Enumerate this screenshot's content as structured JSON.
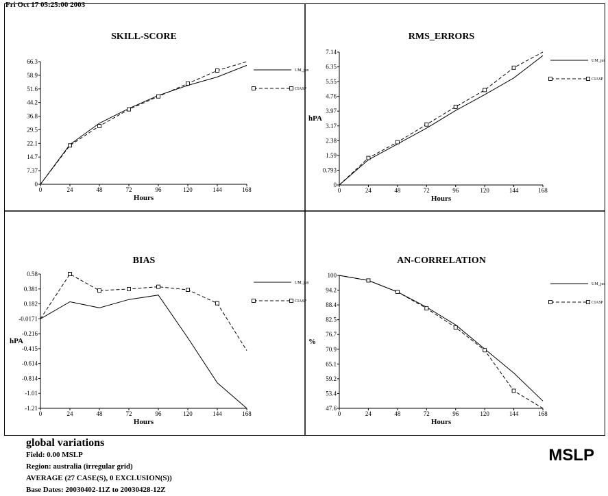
{
  "timestamp": "Fri Oct 17 05:25:00 2003",
  "colors": {
    "line": "#000000",
    "background": "#ffffff"
  },
  "chart_data": [
    {
      "type": "line",
      "title": "SKILL-SCORE",
      "xlabel": "Hours",
      "ylabel": "",
      "x": [
        0,
        24,
        48,
        72,
        96,
        120,
        144,
        168
      ],
      "x_ticks": [
        "0",
        "24",
        "48",
        "72",
        "96",
        "120",
        "144",
        "168"
      ],
      "y_ticks": [
        "0",
        "7.37",
        "14.7",
        "22.1",
        "29.5",
        "36.8",
        "44.2",
        "51.6",
        "58.9",
        "66.3"
      ],
      "ylim": [
        0,
        66.3
      ],
      "legend_position": "right",
      "series": [
        {
          "name": "UM_jun",
          "style": "solid",
          "marker": "none",
          "values": [
            0,
            21.5,
            33.0,
            41.0,
            48.0,
            53.5,
            58.0,
            64.3
          ]
        },
        {
          "name": "CIASP",
          "style": "dashed",
          "marker": "square",
          "values": [
            0,
            21.0,
            31.5,
            40.5,
            47.5,
            54.5,
            61.5,
            66.3
          ]
        }
      ]
    },
    {
      "type": "line",
      "title": "RMS_ERRORS",
      "xlabel": "Hours",
      "ylabel": "hPA",
      "x": [
        0,
        24,
        48,
        72,
        96,
        120,
        144,
        168
      ],
      "x_ticks": [
        "0",
        "24",
        "48",
        "72",
        "96",
        "120",
        "144",
        "168"
      ],
      "y_ticks": [
        "0",
        "0.793",
        "1.59",
        "2.38",
        "3.17",
        "3.97",
        "4.76",
        "5.55",
        "6.35",
        "7.14"
      ],
      "ylim": [
        0,
        7.14
      ],
      "legend_position": "right",
      "series": [
        {
          "name": "UM_jun",
          "style": "solid",
          "marker": "none",
          "values": [
            0,
            1.35,
            2.2,
            3.05,
            4.0,
            4.85,
            5.75,
            6.95
          ]
        },
        {
          "name": "CIASP",
          "style": "dashed",
          "marker": "square",
          "values": [
            0,
            1.45,
            2.3,
            3.25,
            4.2,
            5.1,
            6.3,
            7.14
          ]
        }
      ]
    },
    {
      "type": "line",
      "title": "BIAS",
      "xlabel": "Hours",
      "ylabel": "hPA",
      "x": [
        0,
        24,
        48,
        72,
        96,
        120,
        144,
        168
      ],
      "x_ticks": [
        "0",
        "24",
        "48",
        "72",
        "96",
        "120",
        "144",
        "168"
      ],
      "y_ticks": [
        "-1.21",
        "-1.01",
        "-0.814",
        "-0.614",
        "-0.415",
        "-0.216",
        "-0.0171",
        "0.182",
        "0.381",
        "0.58"
      ],
      "ylim": [
        -1.21,
        0.58
      ],
      "legend_position": "right",
      "series": [
        {
          "name": "UM_jun",
          "style": "solid",
          "marker": "none",
          "values": [
            -0.0171,
            0.21,
            0.13,
            0.24,
            0.3,
            -0.27,
            -0.87,
            -1.21
          ]
        },
        {
          "name": "CIASP",
          "style": "dashed",
          "marker": "square",
          "values": [
            -0.0171,
            0.58,
            0.36,
            0.38,
            0.41,
            0.37,
            0.19,
            -0.44
          ]
        }
      ]
    },
    {
      "type": "line",
      "title": "AN-CORRELATION",
      "xlabel": "Hours",
      "ylabel": "%",
      "x": [
        0,
        24,
        48,
        72,
        96,
        120,
        144,
        168
      ],
      "x_ticks": [
        "0",
        "24",
        "48",
        "72",
        "96",
        "120",
        "144",
        "168"
      ],
      "y_ticks": [
        "47.6",
        "53.4",
        "59.2",
        "65.1",
        "70.9",
        "76.7",
        "82.5",
        "88.4",
        "94.2",
        "100"
      ],
      "ylim": [
        47.6,
        100
      ],
      "legend_position": "right",
      "series": [
        {
          "name": "UM_jun",
          "style": "solid",
          "marker": "none",
          "values": [
            100,
            98,
            93.5,
            87.5,
            80.5,
            71.0,
            61.5,
            50.5
          ]
        },
        {
          "name": "CIASP",
          "style": "dashed",
          "marker": "square",
          "values": [
            100,
            98,
            93.5,
            87.0,
            79.5,
            70.5,
            54.5,
            47.6
          ]
        }
      ]
    }
  ],
  "footer": {
    "title": "global variations",
    "field": "Field:   0.00 MSLP",
    "region": "Region: australia (irregular grid)",
    "average": "AVERAGE (27 CASE(S), 0 EXCLUSION(S))",
    "base_dates": "Base Dates: 20030402-11Z to 20030428-12Z",
    "field_name": "MSLP"
  }
}
